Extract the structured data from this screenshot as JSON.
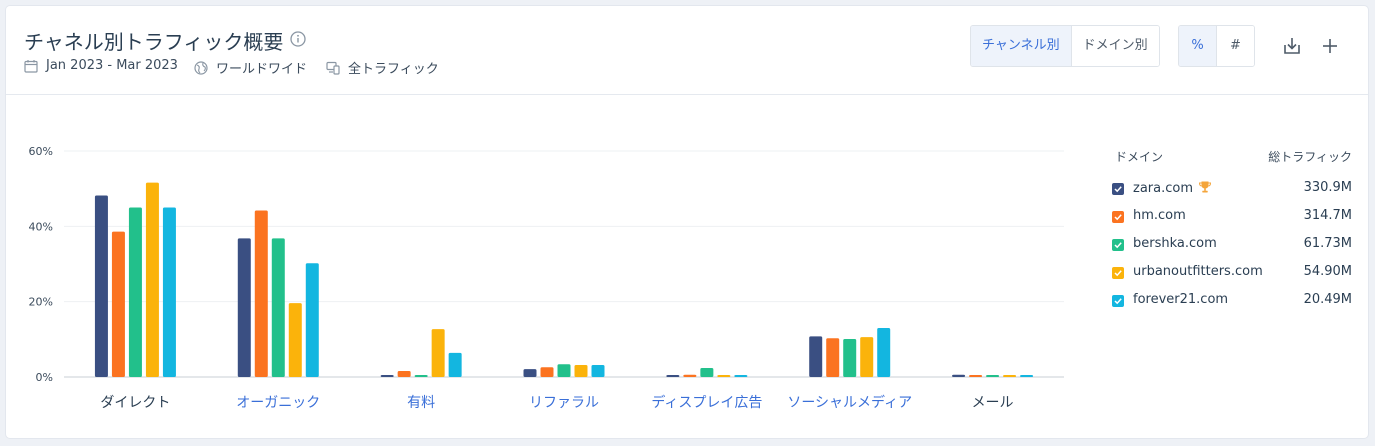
{
  "header": {
    "title": "チャネル別トラフィック概要",
    "date_range": "Jan 2023 - Mar 2023",
    "region": "ワールドワイド",
    "traffic_type": "全トラフィック"
  },
  "toggles": {
    "view": [
      {
        "label": "チャンネル別",
        "active": true
      },
      {
        "label": "ドメイン別",
        "active": false
      }
    ],
    "unit": [
      {
        "label": "%",
        "active": true
      },
      {
        "label": "#",
        "active": false
      }
    ]
  },
  "icons": {
    "info": "info-icon",
    "calendar": "calendar-icon",
    "globe": "globe-icon",
    "devices": "devices-icon",
    "download": "download-icon",
    "add": "plus-icon",
    "trophy": "trophy-icon"
  },
  "legend": {
    "domain_header": "ドメイン",
    "traffic_header": "総トラフィック",
    "items": [
      {
        "domain": "zara.com",
        "total": "330.9M",
        "color": "#3a4f82",
        "leader": true
      },
      {
        "domain": "hm.com",
        "total": "314.7M",
        "color": "#fb7320",
        "leader": false
      },
      {
        "domain": "bershka.com",
        "total": "61.73M",
        "color": "#22c08b",
        "leader": false
      },
      {
        "domain": "urbanoutfitters.com",
        "total": "54.90M",
        "color": "#fbb30b",
        "leader": false
      },
      {
        "domain": "forever21.com",
        "total": "20.49M",
        "color": "#13b6e0",
        "leader": false
      }
    ]
  },
  "chart_data": {
    "type": "bar",
    "ylim": [
      0,
      60
    ],
    "yticks": [
      0,
      20,
      40,
      60
    ],
    "ytick_labels": [
      "0%",
      "20%",
      "40%",
      "60%"
    ],
    "grid": true,
    "legend_position": "right",
    "categories": [
      "ダイレクト",
      "オーガニック",
      "有料",
      "リファラル",
      "ディスプレイ広告",
      "ソーシャルメディア",
      "メール"
    ],
    "category_link": [
      false,
      true,
      true,
      true,
      true,
      true,
      false
    ],
    "series": [
      {
        "name": "zara.com",
        "color": "#3a4f82",
        "values": [
          48.2,
          36.8,
          0.5,
          2.1,
          0.5,
          10.8,
          0.6
        ]
      },
      {
        "name": "hm.com",
        "color": "#fb7320",
        "values": [
          38.6,
          44.2,
          1.6,
          2.6,
          0.6,
          10.3,
          0.4
        ]
      },
      {
        "name": "bershka.com",
        "color": "#22c08b",
        "values": [
          45.0,
          36.8,
          0.4,
          3.4,
          2.4,
          10.1,
          0.4
        ]
      },
      {
        "name": "urbanoutfitters.com",
        "color": "#fbb30b",
        "values": [
          51.6,
          19.6,
          12.7,
          3.2,
          0.5,
          10.6,
          0.4
        ]
      },
      {
        "name": "forever21.com",
        "color": "#13b6e0",
        "values": [
          45.0,
          30.2,
          6.4,
          3.2,
          0.5,
          13.0,
          0.5
        ]
      }
    ]
  }
}
